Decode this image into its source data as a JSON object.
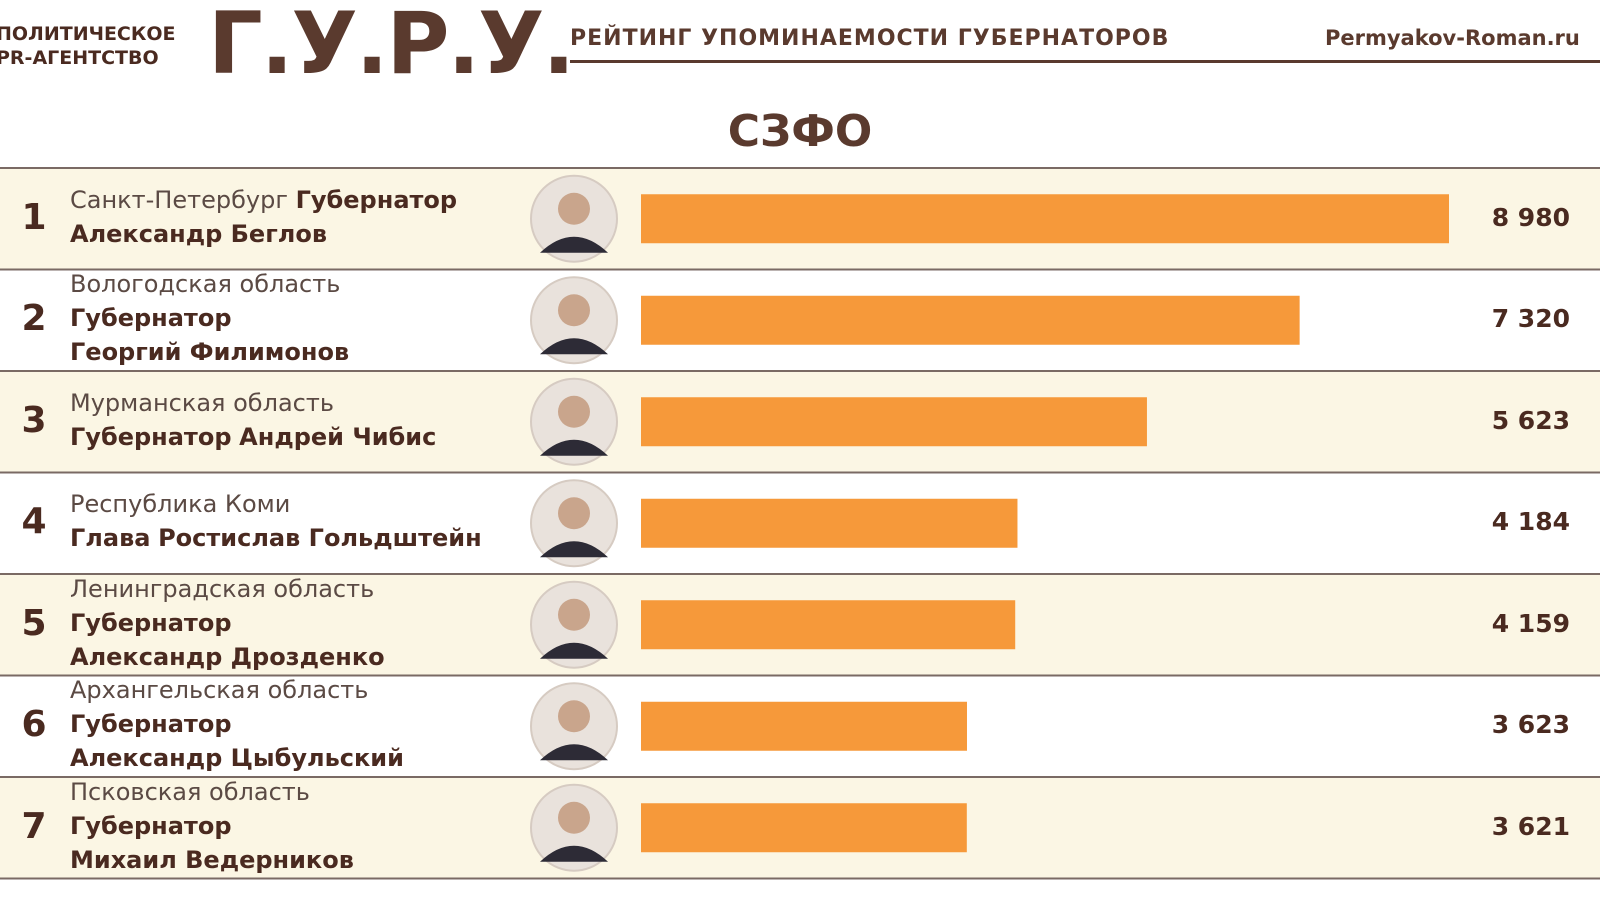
{
  "header": {
    "agency_line1": "ПОЛИТИЧЕСКОЕ",
    "agency_line2": "PR-АГЕНТСТВО",
    "logo": "Г.У.Р.У.",
    "subtitle": "РЕЙТИНГ УПОМИНАЕМОСТИ ГУБЕРНАТОРОВ",
    "site": "Permyakov-Roman.ru"
  },
  "region_title": "СЗФО",
  "colors": {
    "bar": "#f6993a",
    "row_alt": "#fbf6e4",
    "row_plain": "#ffffff",
    "divider": "#7a6a64",
    "text": "#4a2a20"
  },
  "chart_data": {
    "type": "bar",
    "orientation": "horizontal",
    "title": "СЗФО",
    "xlim": [
      0,
      8980
    ],
    "rows": [
      {
        "rank": "1",
        "region": "Санкт-Петербург",
        "title": "Губернатор",
        "name": "Александр Беглов",
        "value": 8980,
        "value_label": "8 980",
        "layout": "inline-title"
      },
      {
        "rank": "2",
        "region": "Вологодская область",
        "title": "Губернатор",
        "name": "Георгий Филимонов",
        "value": 7320,
        "value_label": "7 320",
        "layout": "three-line"
      },
      {
        "rank": "3",
        "region": "Мурманская область",
        "title": "Губернатор",
        "name": "Андрей Чибис",
        "value": 5623,
        "value_label": "5 623",
        "layout": "title-name"
      },
      {
        "rank": "4",
        "region": "Республика Коми",
        "title": "Глава",
        "name": "Ростислав Гольдштейн",
        "value": 4184,
        "value_label": "4 184",
        "layout": "title-name"
      },
      {
        "rank": "5",
        "region": "Ленинградская область",
        "title": "Губернатор",
        "name": "Александр Дрозденко",
        "value": 4159,
        "value_label": "4 159",
        "layout": "three-line"
      },
      {
        "rank": "6",
        "region": "Архангельская область",
        "title": "Губернатор",
        "name": "Александр Цыбульский",
        "value": 3623,
        "value_label": "3 623",
        "layout": "three-line"
      },
      {
        "rank": "7",
        "region": "Псковская область",
        "title": "Губернатор",
        "name": "Михаил Ведерников",
        "value": 3621,
        "value_label": "3 621",
        "layout": "three-line"
      }
    ]
  }
}
